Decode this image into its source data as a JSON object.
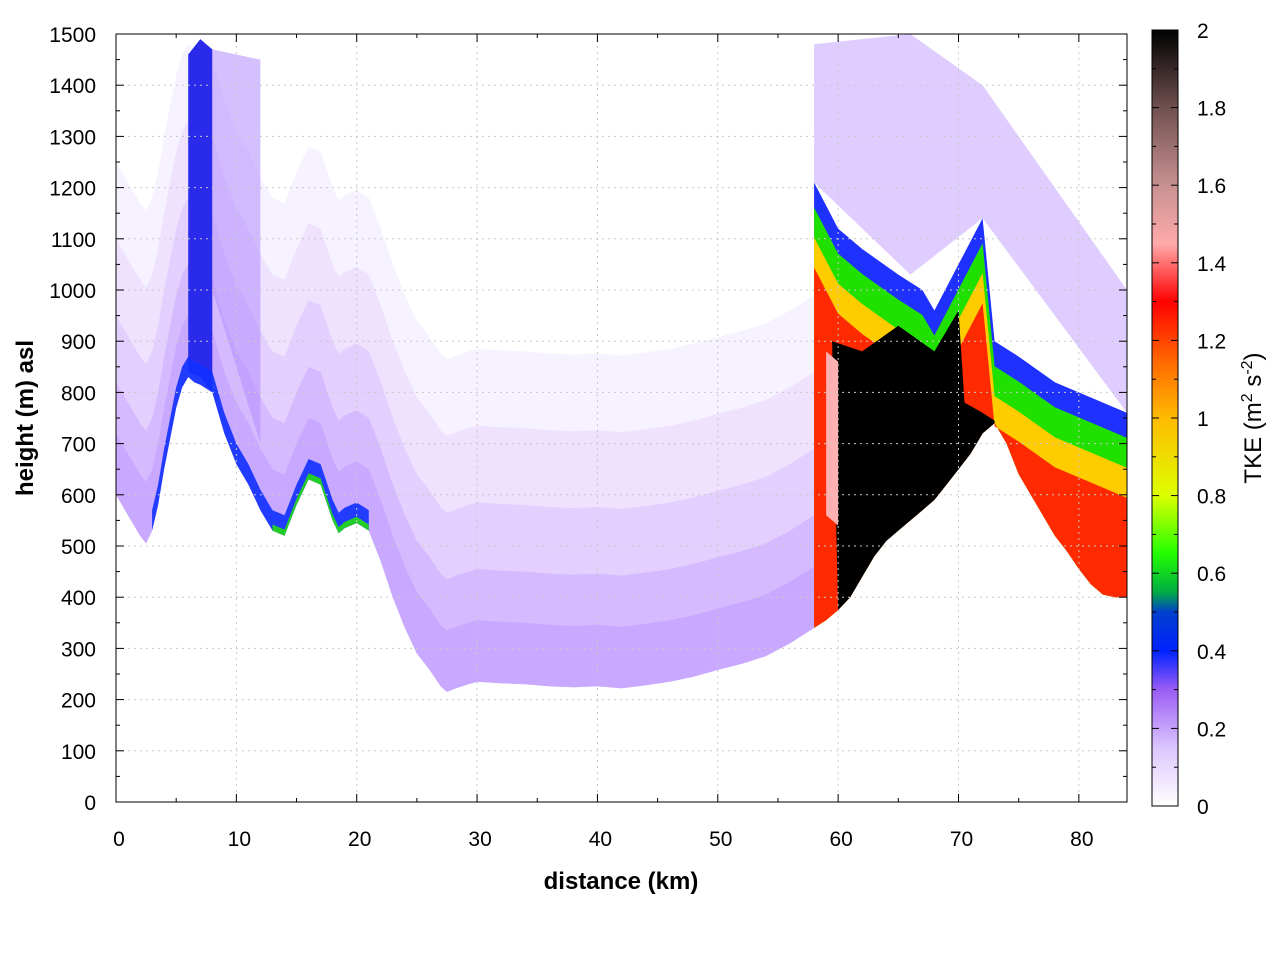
{
  "chart_data": {
    "type": "heatmap",
    "title": "",
    "xlabel": "distance (km)",
    "ylabel": "height (m) asl",
    "xlim": [
      0,
      84
    ],
    "ylim": [
      0,
      1500
    ],
    "x_ticks": [
      0,
      10,
      20,
      30,
      40,
      50,
      60,
      70,
      80
    ],
    "y_ticks": [
      0,
      100,
      200,
      300,
      400,
      500,
      600,
      700,
      800,
      900,
      1000,
      1100,
      1200,
      1300,
      1400,
      1500
    ],
    "grid": true,
    "colorbar": {
      "label_main": "TKE (m",
      "sup1": "2",
      "label_mid": " s",
      "sup2": "-2",
      "label_end": ")",
      "min": 0,
      "max": 2,
      "ticks": [
        0,
        0.2,
        0.4,
        0.6,
        0.8,
        1,
        1.2,
        1.4,
        1.6,
        1.8,
        2
      ],
      "palette": [
        [
          0,
          "#ffffff"
        ],
        [
          0.15,
          "#dcc6ff"
        ],
        [
          0.3,
          "#9a5cf5"
        ],
        [
          0.4,
          "#0022ff"
        ],
        [
          0.5,
          "#0040cc"
        ],
        [
          0.55,
          "#00aa44"
        ],
        [
          0.65,
          "#22ff00"
        ],
        [
          0.8,
          "#ddff00"
        ],
        [
          1.0,
          "#ffbb00"
        ],
        [
          1.15,
          "#ff6600"
        ],
        [
          1.3,
          "#ff0000"
        ],
        [
          1.45,
          "#ffaaaa"
        ],
        [
          1.6,
          "#c89090"
        ],
        [
          1.8,
          "#705050"
        ],
        [
          2.0,
          "#000000"
        ]
      ]
    },
    "terrain": {
      "x": [
        0,
        1,
        2,
        2.5,
        3,
        3.5,
        4,
        5,
        5.5,
        6,
        6.5,
        7,
        8,
        9,
        10,
        11,
        12,
        13,
        14,
        15,
        16,
        17,
        18,
        18.5,
        19,
        20,
        21,
        22,
        23,
        24,
        25,
        26,
        27,
        27.5,
        28,
        29,
        30,
        32,
        34,
        36,
        38,
        40,
        42,
        44,
        46,
        48,
        50,
        52,
        54,
        56,
        58,
        59,
        60,
        61,
        62,
        63,
        64,
        65,
        66,
        67,
        68,
        69,
        70,
        71,
        72,
        73,
        74,
        75,
        76,
        77,
        78,
        79,
        80,
        81,
        82,
        83,
        84
      ],
      "y": [
        600,
        560,
        520,
        505,
        530,
        580,
        650,
        770,
        810,
        830,
        820,
        815,
        800,
        720,
        660,
        620,
        570,
        530,
        520,
        580,
        630,
        620,
        550,
        525,
        535,
        545,
        530,
        470,
        400,
        340,
        290,
        260,
        225,
        215,
        220,
        228,
        235,
        232,
        230,
        226,
        224,
        226,
        222,
        228,
        235,
        245,
        258,
        270,
        285,
        310,
        340,
        355,
        375,
        400,
        440,
        480,
        510,
        530,
        550,
        570,
        590,
        620,
        650,
        680,
        720,
        740,
        700,
        640,
        600,
        560,
        520,
        490,
        455,
        425,
        405,
        400,
        400
      ]
    }
  }
}
